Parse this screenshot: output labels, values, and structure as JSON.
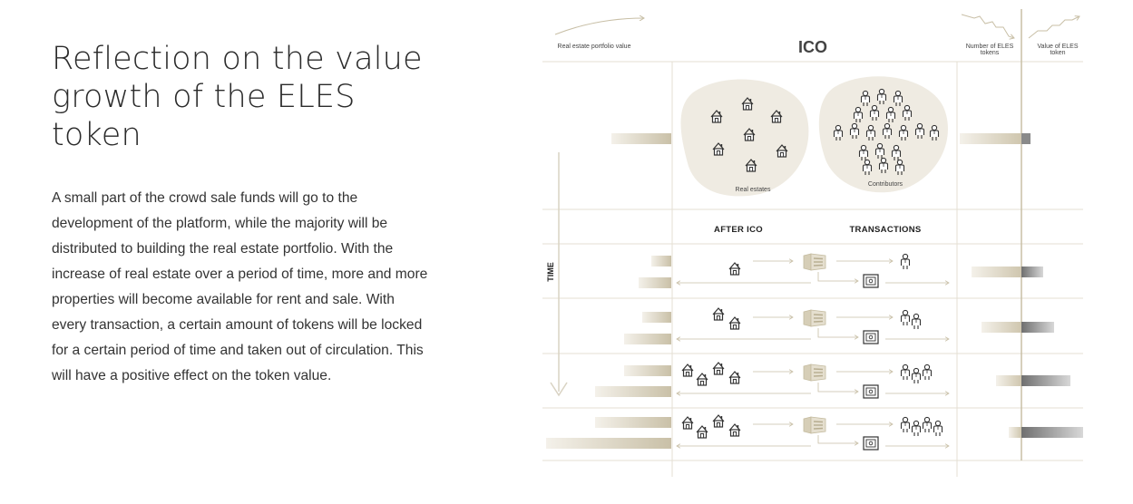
{
  "heading": "Reflection on the value growth of the ELES token",
  "paragraph": "A small part of the crowd sale funds will go to the development of the platform, while the majority will be distributed to building the real estate portfolio. With the increase of real estate over a period of time, more and more properties will become available for rent and sale. With every transaction, a certain amount of tokens will be locked for a certain period of time and taken out of circulation. This will have a positive effect on the token value.",
  "diagram": {
    "label_portfolio": "Real estate portfolio value",
    "label_ico": "ICO",
    "label_tokens": "Number of ELES tokens",
    "label_value": "Value of ELES token",
    "label_real_estates": "Real estates",
    "label_contributors": "Contributors",
    "label_after_ico": "AFTER ICO",
    "label_transactions": "TRANSACTIONS",
    "label_time": "TIME",
    "colors": {
      "gold": "#c8bfa6",
      "beige": "#efebe2",
      "line": "#d9d3c3",
      "dark": "#333333",
      "grey": "#8a8a8a"
    }
  }
}
